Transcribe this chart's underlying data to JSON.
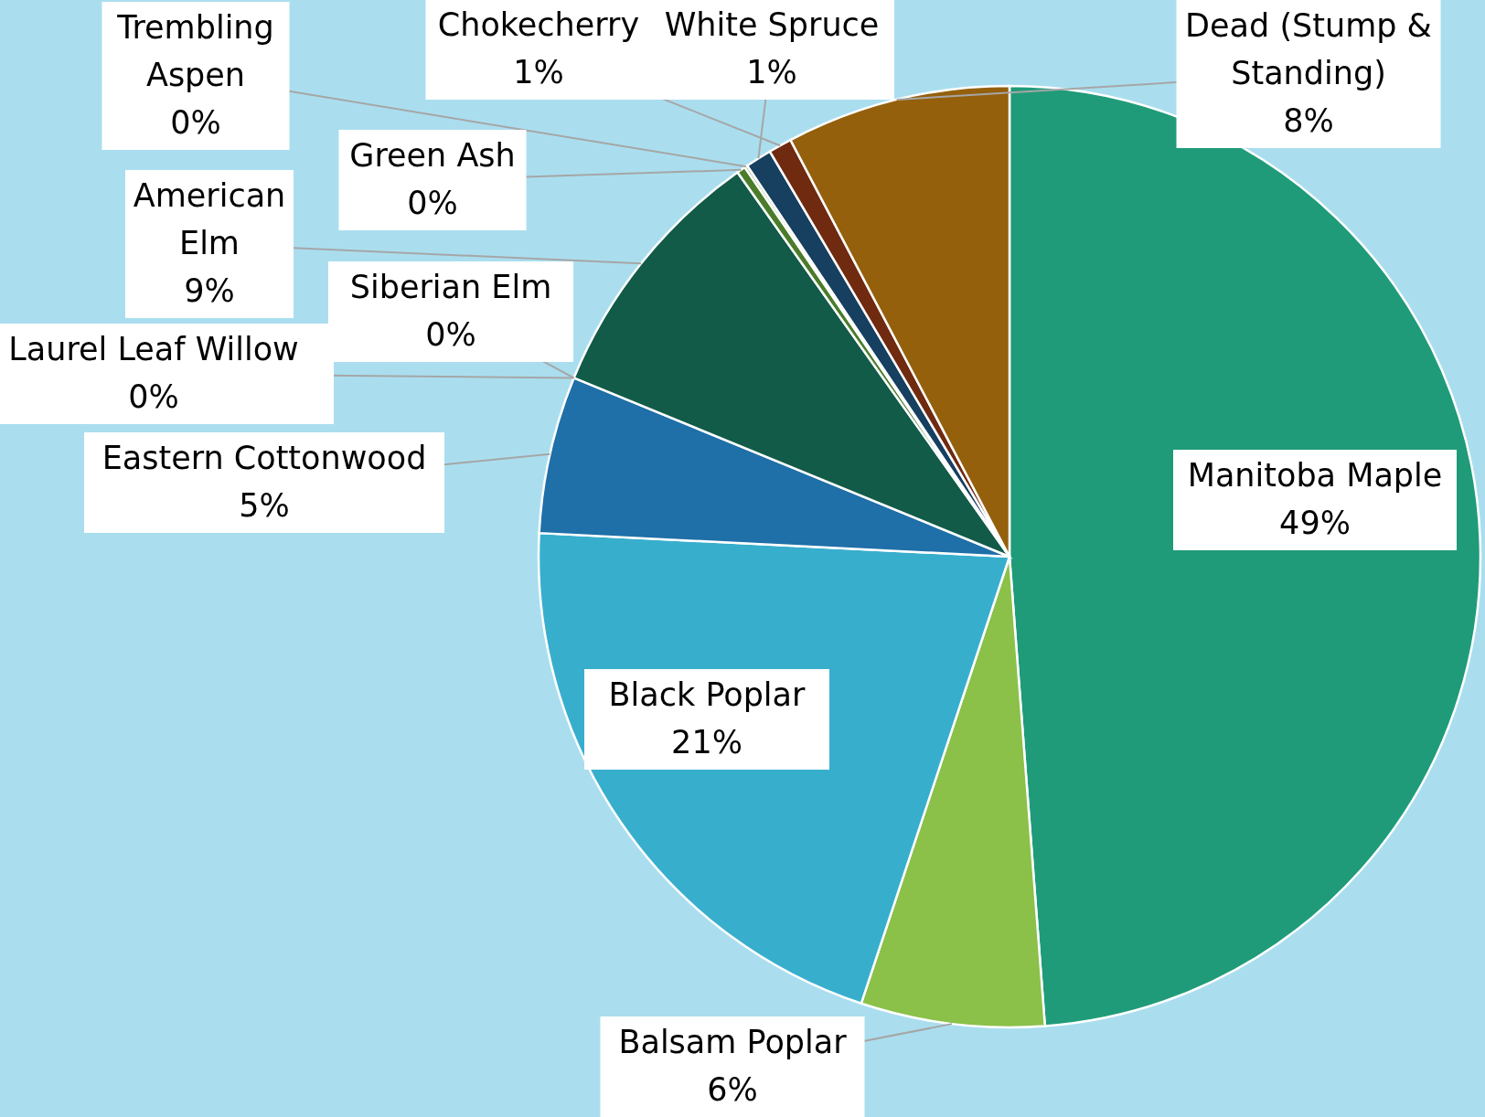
{
  "chart_data": {
    "type": "pie",
    "categories": [
      "Manitoba Maple",
      "Balsam Poplar",
      "Black Poplar",
      "Eastern Cottonwood",
      "Laurel Leaf Willow",
      "Siberian Elm",
      "American Elm",
      "Green Ash",
      "Trembling Aspen",
      "White Spruce",
      "Chokecherry",
      "Dead (Stump & Standing)"
    ],
    "values": [
      48.8,
      6.3,
      20.7,
      5.4,
      0,
      0,
      9.0,
      0.3,
      0.1,
      0.9,
      0.8,
      7.7
    ],
    "value_labels": [
      "49%",
      "6%",
      "21%",
      "5%",
      "0%",
      "0%",
      "9%",
      "0%",
      "0%",
      "1%",
      "1%",
      "8%"
    ],
    "colors": [
      "#1f9b79",
      "#8bc049",
      "#38aecd",
      "#1f6fa8",
      "#5b8f3a",
      "#3d6e8f",
      "#115b48",
      "#4a7c2a",
      "#7aa64a",
      "#163f60",
      "#6f2a10",
      "#94600c"
    ]
  }
}
